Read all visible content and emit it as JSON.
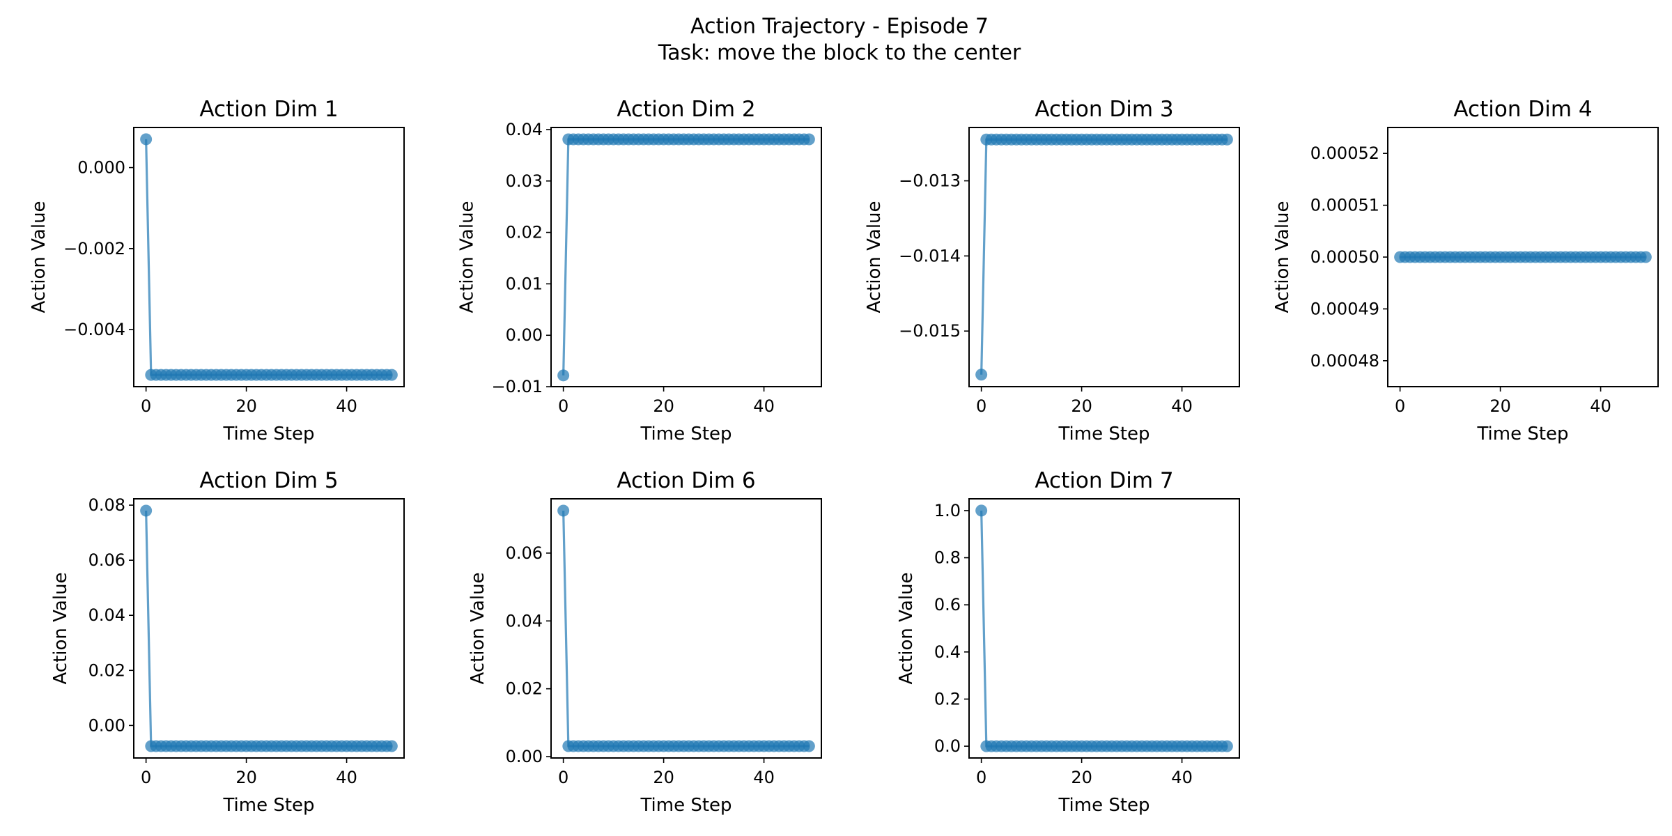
{
  "suptitle_line1": "Action Trajectory - Episode 7",
  "suptitle_line2": "Task: move the block to the center",
  "colors": {
    "series": "#1f77b4",
    "axes": "#000000",
    "background": "#ffffff"
  },
  "chart_data": [
    {
      "type": "line",
      "title": "Action Dim 1",
      "xlabel": "Time Step",
      "ylabel": "Action Value",
      "n_steps": 50,
      "x_start": 0,
      "first_value": 0.0007,
      "rest_value": -0.00512,
      "xlim": [
        -2.45,
        51.45
      ],
      "ylim": [
        -0.00541,
        0.00099
      ],
      "xticks": [
        0,
        20,
        40
      ],
      "xtick_labels": [
        "0",
        "20",
        "40"
      ],
      "yticks": [
        0.0,
        -0.002,
        -0.004
      ],
      "ytick_labels": [
        "0.000",
        "−0.002",
        "−0.004"
      ],
      "marker": "circle"
    },
    {
      "type": "line",
      "title": "Action Dim 2",
      "xlabel": "Time Step",
      "ylabel": "Action Value",
      "n_steps": 50,
      "x_start": 0,
      "first_value": -0.0078,
      "rest_value": 0.0381,
      "xlim": [
        -2.45,
        51.45
      ],
      "ylim": [
        -0.00999,
        0.0404
      ],
      "xticks": [
        0,
        20,
        40
      ],
      "xtick_labels": [
        "0",
        "20",
        "40"
      ],
      "yticks": [
        0.04,
        0.03,
        0.02,
        0.01,
        0.0,
        -0.01
      ],
      "ytick_labels": [
        "0.04",
        "0.03",
        "0.02",
        "0.01",
        "0.00",
        "−0.01"
      ],
      "marker": "circle"
    },
    {
      "type": "line",
      "title": "Action Dim 3",
      "xlabel": "Time Step",
      "ylabel": "Action Value",
      "n_steps": 50,
      "x_start": 0,
      "first_value": -0.01558,
      "rest_value": -0.01245,
      "xlim": [
        -2.45,
        51.45
      ],
      "ylim": [
        -0.01574,
        -0.01229
      ],
      "xticks": [
        0,
        20,
        40
      ],
      "xtick_labels": [
        "0",
        "20",
        "40"
      ],
      "yticks": [
        -0.013,
        -0.014,
        -0.015
      ],
      "ytick_labels": [
        "−0.013",
        "−0.014",
        "−0.015"
      ],
      "marker": "circle"
    },
    {
      "type": "line",
      "title": "Action Dim 4",
      "xlabel": "Time Step",
      "ylabel": "Action Value",
      "n_steps": 50,
      "x_start": 0,
      "first_value": 0.0005,
      "rest_value": 0.0005,
      "xlim": [
        -2.45,
        51.45
      ],
      "ylim": [
        0.000475,
        0.000525
      ],
      "xticks": [
        0,
        20,
        40
      ],
      "xtick_labels": [
        "0",
        "20",
        "40"
      ],
      "yticks": [
        0.00052,
        0.00051,
        0.0005,
        0.00049,
        0.00048
      ],
      "ytick_labels": [
        "0.00052",
        "0.00051",
        "0.00050",
        "0.00049",
        "0.00048"
      ],
      "marker": "circle"
    },
    {
      "type": "line",
      "title": "Action Dim 5",
      "xlabel": "Time Step",
      "ylabel": "Action Value",
      "n_steps": 50,
      "x_start": 0,
      "first_value": 0.078,
      "rest_value": -0.0075,
      "xlim": [
        -2.45,
        51.45
      ],
      "ylim": [
        -0.0118,
        0.0823
      ],
      "xticks": [
        0,
        20,
        40
      ],
      "xtick_labels": [
        "0",
        "20",
        "40"
      ],
      "yticks": [
        0.08,
        0.06,
        0.04,
        0.02,
        0.0
      ],
      "ytick_labels": [
        "0.08",
        "0.06",
        "0.04",
        "0.02",
        "0.00"
      ],
      "marker": "circle"
    },
    {
      "type": "line",
      "title": "Action Dim 6",
      "xlabel": "Time Step",
      "ylabel": "Action Value",
      "n_steps": 50,
      "x_start": 0,
      "first_value": 0.0725,
      "rest_value": 0.0031,
      "xlim": [
        -2.45,
        51.45
      ],
      "ylim": [
        -0.0004,
        0.076
      ],
      "xticks": [
        0,
        20,
        40
      ],
      "xtick_labels": [
        "0",
        "20",
        "40"
      ],
      "yticks": [
        0.06,
        0.04,
        0.02,
        0.0
      ],
      "ytick_labels": [
        "0.06",
        "0.04",
        "0.02",
        "0.00"
      ],
      "marker": "circle"
    },
    {
      "type": "line",
      "title": "Action Dim 7",
      "xlabel": "Time Step",
      "ylabel": "Action Value",
      "n_steps": 50,
      "x_start": 0,
      "first_value": 1.0,
      "rest_value": 0.0,
      "xlim": [
        -2.45,
        51.45
      ],
      "ylim": [
        -0.05,
        1.05
      ],
      "xticks": [
        0,
        20,
        40
      ],
      "xtick_labels": [
        "0",
        "20",
        "40"
      ],
      "yticks": [
        1.0,
        0.8,
        0.6,
        0.4,
        0.2,
        0.0
      ],
      "ytick_labels": [
        "1.0",
        "0.8",
        "0.6",
        "0.4",
        "0.2",
        "0.0"
      ],
      "marker": "circle"
    }
  ]
}
